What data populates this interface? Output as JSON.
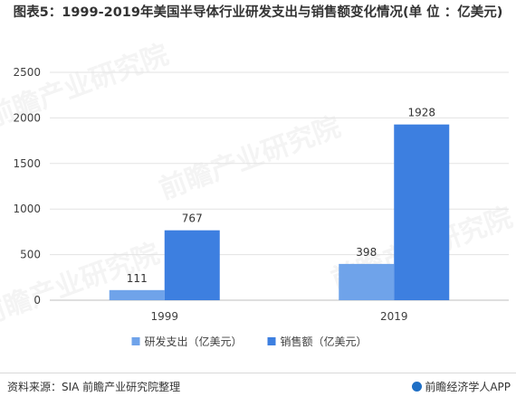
{
  "title": "图表5：1999-2019年美国半导体行业研发支出与销售额变化情况(单 位 ：亿美元)",
  "source": "资料来源：SIA 前瞻产业研究院整理",
  "brand": "前瞻经济学人APP",
  "watermark": "前瞻产业研究院",
  "chart_data": {
    "type": "bar",
    "categories": [
      "1999",
      "2019"
    ],
    "series": [
      {
        "name": "研发支出（亿美元）",
        "values": [
          111,
          398
        ],
        "color": "#6fa3ea"
      },
      {
        "name": "销售额（亿美元）",
        "values": [
          767,
          1928
        ],
        "color": "#3d7fe0"
      }
    ],
    "ylim": [
      0,
      2500
    ],
    "yticks": [
      0,
      500,
      1000,
      1500,
      2000,
      2500
    ],
    "grid": true,
    "legend": "bottom",
    "data_labels": true
  }
}
